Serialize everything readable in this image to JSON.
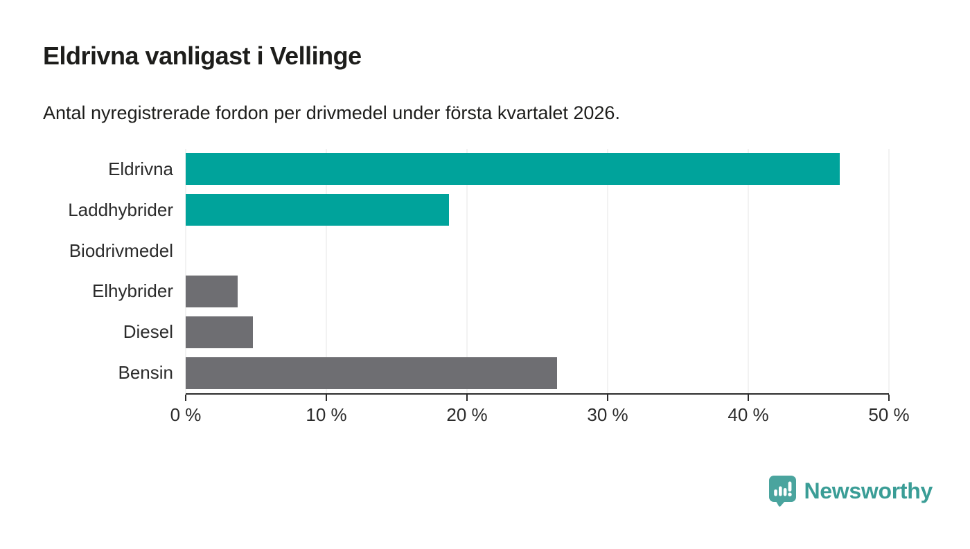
{
  "title": "Eldrivna vanligast i Vellinge",
  "subtitle": "Antal nyregistrerade fordon per drivmedel under första kvartalet 2026.",
  "colors": {
    "highlight": "#00a39b",
    "neutral": "#6e6e72",
    "axis": "#2b2b2b",
    "gridline": "#e6e6e6",
    "text": "#1d1d1b"
  },
  "chart_data": {
    "type": "bar",
    "orientation": "horizontal",
    "title": "Eldrivna vanligast i Vellinge",
    "subtitle": "Antal nyregistrerade fordon per drivmedel under första kvartalet 2026.",
    "categories": [
      "Eldrivna",
      "Laddhybrider",
      "Biodrivmedel",
      "Elhybrider",
      "Diesel",
      "Bensin"
    ],
    "values": [
      46.5,
      18.7,
      0,
      3.7,
      4.8,
      26.4
    ],
    "unit": "%",
    "bar_colors": [
      "#00a39b",
      "#00a39b",
      "#6e6e72",
      "#6e6e72",
      "#6e6e72",
      "#6e6e72"
    ],
    "xlim": [
      0,
      50
    ],
    "x_ticks": [
      0,
      10,
      20,
      30,
      40,
      50
    ],
    "x_tick_labels": [
      "0 %",
      "10 %",
      "20 %",
      "30 %",
      "40 %",
      "50 %"
    ],
    "grid": true,
    "legend": false
  },
  "branding": {
    "name": "Newsworthy",
    "icon": "newsworthy-speech-bubble-chart-icon",
    "icon_color": "#4aa49e",
    "text_color": "#3a9d96"
  }
}
